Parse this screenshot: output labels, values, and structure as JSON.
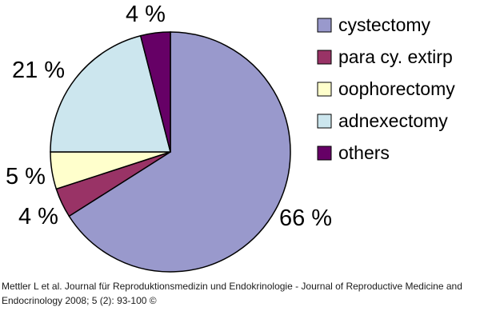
{
  "chart_data": {
    "type": "pie",
    "slices": [
      {
        "label": "cystectomy",
        "value": 66,
        "pct_label": "66 %",
        "color": "#9999cc"
      },
      {
        "label": "para cy. extirp",
        "value": 4,
        "pct_label": "4 %",
        "color": "#993366"
      },
      {
        "label": "oophorectomy",
        "value": 5,
        "pct_label": "5 %",
        "color": "#ffffcc"
      },
      {
        "label": "adnexectomy",
        "value": 21,
        "pct_label": "21 %",
        "color": "#cce6ee"
      },
      {
        "label": "others",
        "value": 4,
        "pct_label": "4 %",
        "color": "#660066"
      }
    ],
    "legend_position": "right"
  },
  "citation": "Mettler L et al. Journal für Reproduktionsmedizin und Endokrinologie - Journal of Reproductive Medicine and Endocrinology 2008; 5 (2): 93-100 ©"
}
